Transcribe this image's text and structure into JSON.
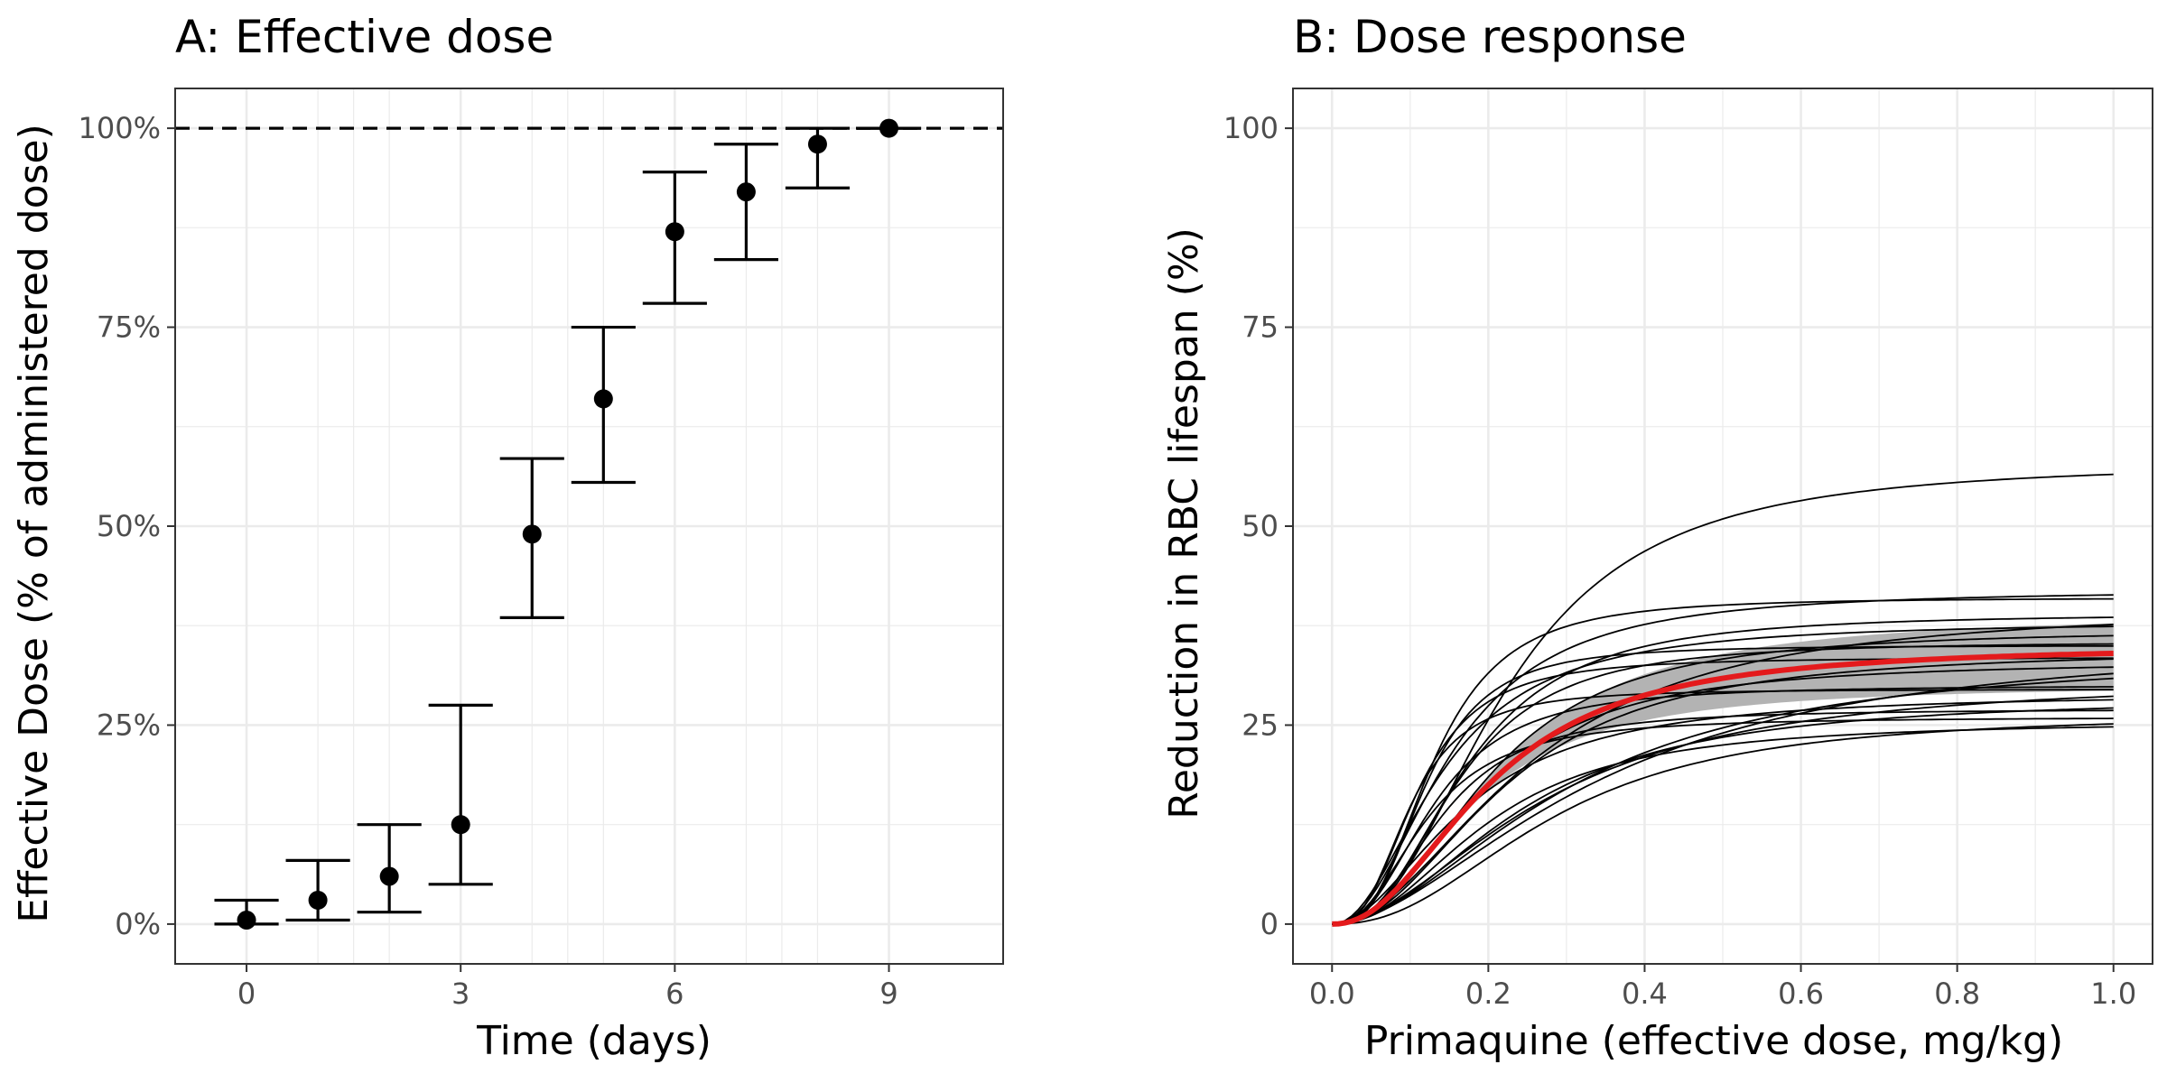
{
  "colors": {
    "grid": "#ebebeb",
    "panel_border": "#333333",
    "ink": "#000000",
    "tick_text": "#4d4d4d",
    "ribbon": "#b3b3b3",
    "median_curve": "#e41a1c"
  },
  "chart_data": [
    {
      "type": "scatter",
      "title": "A: Effective dose",
      "xlabel": "Time (days)",
      "ylabel": "Effective Dose (% of administered dose)",
      "xlim": [
        -1,
        10.6
      ],
      "ylim": [
        -5,
        105
      ],
      "xticks": [
        0,
        3,
        6,
        9
      ],
      "xtick_labels": [
        "0",
        "3",
        "6",
        "9"
      ],
      "yticks": [
        0,
        25,
        50,
        75,
        100
      ],
      "ytick_labels": [
        "0%",
        "25%",
        "50%",
        "75%",
        "100%"
      ],
      "grid": true,
      "legend": "none",
      "reference_line": {
        "y": 100,
        "style": "dashed"
      },
      "points": [
        {
          "x": 0,
          "y": 0.5,
          "low": 0,
          "high": 3
        },
        {
          "x": 1,
          "y": 3,
          "low": 0.5,
          "high": 8
        },
        {
          "x": 2,
          "y": 6,
          "low": 1.5,
          "high": 12.5
        },
        {
          "x": 3,
          "y": 12.5,
          "low": 5,
          "high": 27.5
        },
        {
          "x": 4,
          "y": 49,
          "low": 38.5,
          "high": 58.5
        },
        {
          "x": 5,
          "y": 66,
          "low": 55.5,
          "high": 75
        },
        {
          "x": 6,
          "y": 87,
          "low": 78,
          "high": 94.5
        },
        {
          "x": 7,
          "y": 92,
          "low": 83.5,
          "high": 98
        },
        {
          "x": 8,
          "y": 98,
          "low": 92.5,
          "high": 100
        },
        {
          "x": 9,
          "y": 100,
          "low": 100,
          "high": 100
        }
      ]
    },
    {
      "type": "line",
      "title": "B: Dose response",
      "xlabel": "Primaquine (effective dose, mg/kg)",
      "ylabel": "Reduction in RBC lifespan (%)",
      "xlim": [
        -0.05,
        1.05
      ],
      "ylim": [
        -5,
        105
      ],
      "xticks": [
        0,
        0.2,
        0.4,
        0.6,
        0.8,
        1
      ],
      "xtick_labels": [
        "0.0",
        "0.2",
        "0.4",
        "0.6",
        "0.8",
        "1.0"
      ],
      "yticks": [
        0,
        25,
        50,
        75,
        100
      ],
      "ytick_labels": [
        "0",
        "25",
        "50",
        "75",
        "100"
      ],
      "grid": true,
      "legend": "none",
      "model": "Emax",
      "median_curve": {
        "emax": 35,
        "ed50": 0.2,
        "hill": 2.2
      },
      "ribbon": {
        "lower": {
          "emax": 30,
          "ed50": 0.18,
          "hill": 2.2
        },
        "upper": {
          "emax": 39,
          "ed50": 0.21,
          "hill": 2.2
        }
      },
      "individual_curves": [
        {
          "emax": 58,
          "ed50": 0.22,
          "hill": 2.4
        },
        {
          "emax": 42,
          "ed50": 0.15,
          "hill": 2.2
        },
        {
          "emax": 41,
          "ed50": 0.13,
          "hill": 2.8
        },
        {
          "emax": 40,
          "ed50": 0.25,
          "hill": 2.0
        },
        {
          "emax": 39,
          "ed50": 0.17,
          "hill": 2.5
        },
        {
          "emax": 38,
          "ed50": 0.14,
          "hill": 2.1
        },
        {
          "emax": 36,
          "ed50": 0.34,
          "hill": 1.8
        },
        {
          "emax": 35.5,
          "ed50": 0.16,
          "hill": 2.6
        },
        {
          "emax": 35,
          "ed50": 0.12,
          "hill": 3.0
        },
        {
          "emax": 34.5,
          "ed50": 0.22,
          "hill": 2.2
        },
        {
          "emax": 34,
          "ed50": 0.3,
          "hill": 1.9
        },
        {
          "emax": 33.5,
          "ed50": 0.11,
          "hill": 2.7
        },
        {
          "emax": 33,
          "ed50": 0.19,
          "hill": 2.3
        },
        {
          "emax": 30,
          "ed50": 0.13,
          "hill": 2.5
        },
        {
          "emax": 29.5,
          "ed50": 0.1,
          "hill": 2.8
        },
        {
          "emax": 29,
          "ed50": 0.17,
          "hill": 2.0
        },
        {
          "emax": 28.5,
          "ed50": 0.24,
          "hill": 2.1
        },
        {
          "emax": 27,
          "ed50": 0.14,
          "hill": 2.6
        },
        {
          "emax": 26.5,
          "ed50": 0.28,
          "hill": 2.3
        },
        {
          "emax": 26,
          "ed50": 0.12,
          "hill": 2.4
        },
        {
          "emax": 25.5,
          "ed50": 0.2,
          "hill": 2.2
        },
        {
          "emax": 31,
          "ed50": 0.27,
          "hill": 1.9
        },
        {
          "emax": 37,
          "ed50": 0.2,
          "hill": 2.4
        }
      ]
    }
  ]
}
